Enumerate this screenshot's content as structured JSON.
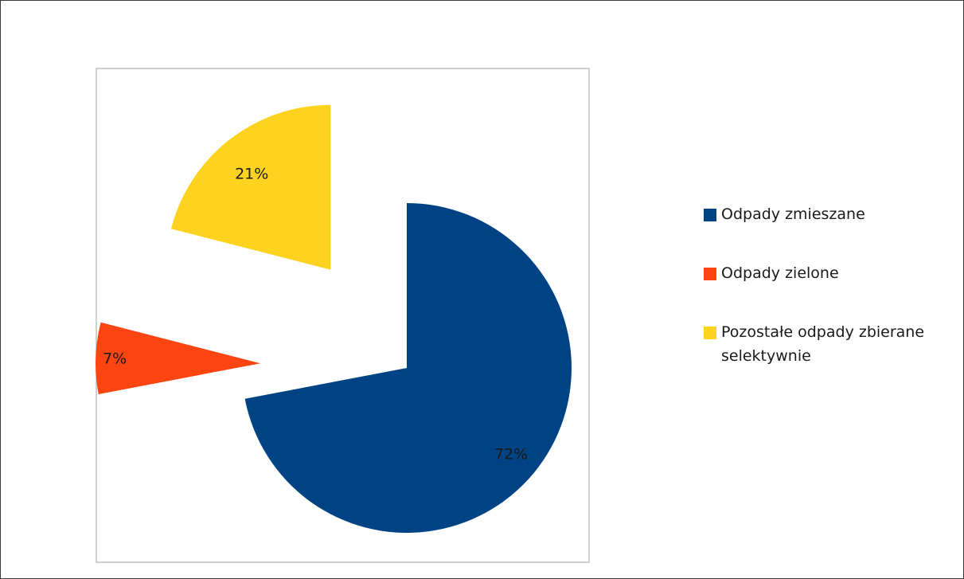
{
  "chart_data": {
    "type": "pie",
    "title": "",
    "categories": [
      "Odpady zmieszane",
      "Odpady zielone",
      "Pozostałe odpady zbierane selektywnie"
    ],
    "values": [
      72,
      7,
      21
    ],
    "labels": [
      "72%",
      "7%",
      "21%"
    ],
    "unit": "%",
    "exploded": true,
    "start_angle_deg": 0,
    "direction": "clockwise",
    "colors": [
      "#004385",
      "#FC4510",
      "#FED31F"
    ],
    "legend_position": "right"
  }
}
